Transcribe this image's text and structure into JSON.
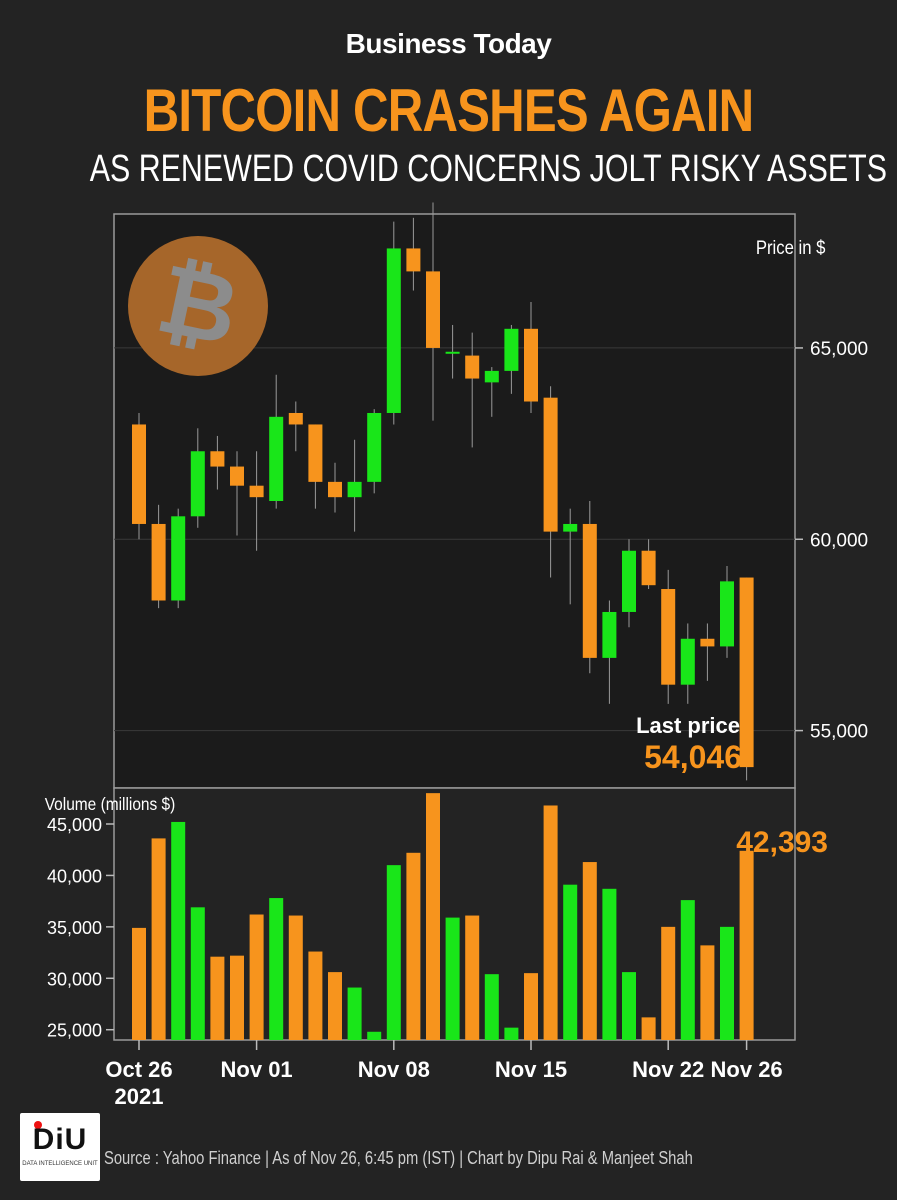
{
  "header": {
    "brand": "Business Today",
    "title": "BITCOIN CRASHES AGAIN",
    "subtitle": "AS RENEWED COVID CONCERNS JOLT RISKY ASSETS"
  },
  "footer": {
    "source": "Source : Yahoo Finance | As of Nov 26, 6:45 pm (IST) | Chart by  Dipu Rai & Manjeet Shah",
    "logo_text": "DiU",
    "logo_sub": "DATA INTELLIGENCE UNIT"
  },
  "colors": {
    "up": "#19e619",
    "down": "#f7941d",
    "background": "#232323",
    "bitcoin": "#a6662a"
  },
  "icon": "bitcoin-coin-icon",
  "chart_data": [
    {
      "type": "candlestick",
      "ylabel": "Price in $",
      "ylim": [
        53500,
        68500
      ],
      "yticks": [
        55000,
        60000,
        65000
      ],
      "ytick_labels": [
        "65,000",
        "60,000",
        "55,000"
      ],
      "annotation_label": "Last price",
      "annotation_value": "54,046",
      "candles": [
        {
          "o": 63000,
          "h": 63300,
          "l": 60000,
          "c": 60400
        },
        {
          "o": 60400,
          "h": 60900,
          "l": 58200,
          "c": 58400
        },
        {
          "o": 58400,
          "h": 60800,
          "l": 58200,
          "c": 60600
        },
        {
          "o": 60600,
          "h": 62900,
          "l": 60300,
          "c": 62300
        },
        {
          "o": 62300,
          "h": 62700,
          "l": 61300,
          "c": 61900
        },
        {
          "o": 61900,
          "h": 62300,
          "l": 60100,
          "c": 61400
        },
        {
          "o": 61400,
          "h": 62300,
          "l": 59700,
          "c": 61100
        },
        {
          "o": 61000,
          "h": 64300,
          "l": 60800,
          "c": 63200
        },
        {
          "o": 63300,
          "h": 63600,
          "l": 62300,
          "c": 63000
        },
        {
          "o": 63000,
          "h": 63000,
          "l": 60800,
          "c": 61500
        },
        {
          "o": 61500,
          "h": 62000,
          "l": 60700,
          "c": 61100
        },
        {
          "o": 61100,
          "h": 62600,
          "l": 60200,
          "c": 61500
        },
        {
          "o": 61500,
          "h": 63400,
          "l": 61200,
          "c": 63300
        },
        {
          "o": 63300,
          "h": 68300,
          "l": 63000,
          "c": 67600
        },
        {
          "o": 67600,
          "h": 68400,
          "l": 66500,
          "c": 67000
        },
        {
          "o": 67000,
          "h": 68800,
          "l": 63100,
          "c": 65000
        },
        {
          "o": 64900,
          "h": 65600,
          "l": 64200,
          "c": 64900
        },
        {
          "o": 64800,
          "h": 65400,
          "l": 62400,
          "c": 64200
        },
        {
          "o": 64100,
          "h": 64500,
          "l": 63200,
          "c": 64400
        },
        {
          "o": 64400,
          "h": 65600,
          "l": 63800,
          "c": 65500
        },
        {
          "o": 65500,
          "h": 66200,
          "l": 63300,
          "c": 63600
        },
        {
          "o": 63700,
          "h": 64000,
          "l": 59000,
          "c": 60200
        },
        {
          "o": 60200,
          "h": 60800,
          "l": 58300,
          "c": 60400
        },
        {
          "o": 60400,
          "h": 61000,
          "l": 56500,
          "c": 56900
        },
        {
          "o": 56900,
          "h": 58400,
          "l": 55700,
          "c": 58100
        },
        {
          "o": 58100,
          "h": 60000,
          "l": 57700,
          "c": 59700
        },
        {
          "o": 59700,
          "h": 60000,
          "l": 58700,
          "c": 58800
        },
        {
          "o": 58700,
          "h": 59200,
          "l": 55700,
          "c": 56200
        },
        {
          "o": 56200,
          "h": 57800,
          "l": 55700,
          "c": 57400
        },
        {
          "o": 57400,
          "h": 57800,
          "l": 56300,
          "c": 57200
        },
        {
          "o": 57200,
          "h": 59300,
          "l": 56900,
          "c": 58900
        },
        {
          "o": 59000,
          "h": 59000,
          "l": 53700,
          "c": 54046
        }
      ]
    },
    {
      "type": "bar",
      "ylabel": "Volume (millions $)",
      "ylim": [
        24000,
        48500
      ],
      "yticks": [
        25000,
        30000,
        35000,
        40000,
        45000
      ],
      "ytick_labels": [
        "45,000",
        "40,000",
        "35,000",
        "30,000",
        "25,000"
      ],
      "annotation_value": "42,393",
      "x_labels": [
        "Oct 26\n2021",
        "Nov 01",
        "Nov 08",
        "Nov 15",
        "Nov 22",
        "Nov 26"
      ],
      "x_label_index": [
        0,
        6,
        13,
        20,
        27,
        31
      ],
      "values": [
        34900,
        43600,
        45200,
        36900,
        32100,
        32200,
        36200,
        37800,
        36100,
        32600,
        30600,
        29100,
        24800,
        41000,
        42200,
        48000,
        35900,
        36100,
        30400,
        25200,
        30500,
        46800,
        39100,
        41300,
        38700,
        30600,
        26200,
        35000,
        37600,
        33200,
        35000,
        42393
      ]
    }
  ]
}
